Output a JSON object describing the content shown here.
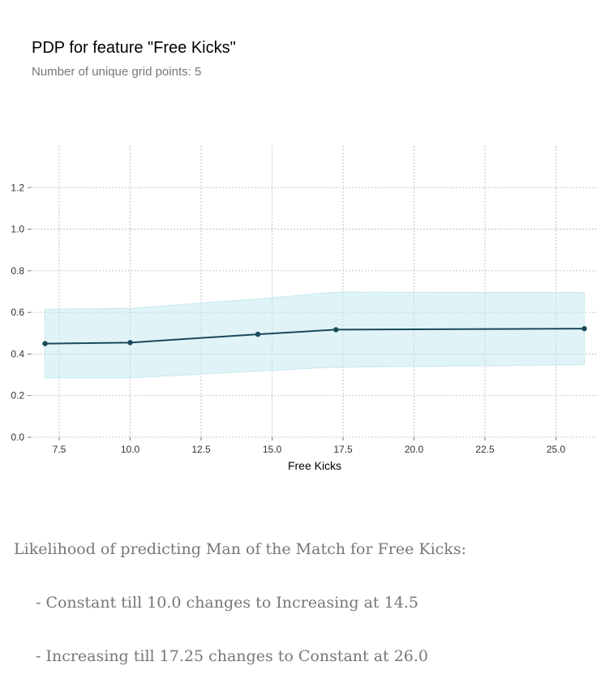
{
  "header": {
    "title": "PDP for feature \"Free Kicks\"",
    "subtitle": "Number of unique grid points: 5"
  },
  "chart_data": {
    "type": "line",
    "x": [
      7,
      10,
      14.5,
      17.25,
      26
    ],
    "values": [
      0.45,
      0.455,
      0.495,
      0.517,
      0.522
    ],
    "band_upper": [
      0.615,
      0.62,
      0.665,
      0.698,
      0.696
    ],
    "band_lower": [
      0.285,
      0.285,
      0.318,
      0.337,
      0.348
    ],
    "xlabel": "Free Kicks",
    "ylabel": "",
    "xlim": [
      6.5,
      26.5
    ],
    "ylim": [
      0.0,
      1.4
    ],
    "x_ticks": [
      "7.5",
      "10.0",
      "12.5",
      "15.0",
      "17.5",
      "20.0",
      "22.5",
      "25.0"
    ],
    "y_ticks": [
      "0.0",
      "0.2",
      "0.4",
      "0.6",
      "0.8",
      "1.0",
      "1.2"
    ],
    "grid": true,
    "line_color": "#1a4a5c",
    "band_color": "#c6ebf2"
  },
  "caption": {
    "line1": "Likelihood of predicting Man of the Match for Free Kicks:",
    "line2": "- Constant till 10.0 changes to Increasing at 14.5",
    "line3": "- Increasing till 17.25 changes to Constant at 26.0"
  }
}
